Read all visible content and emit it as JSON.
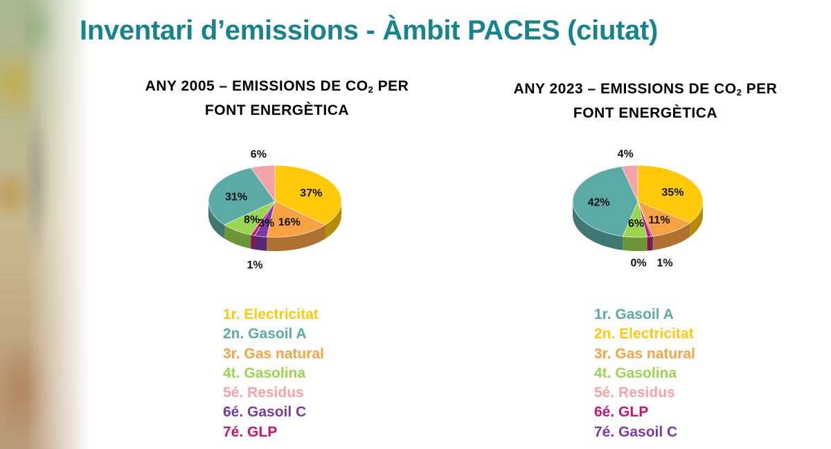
{
  "title": "Inventari d’emissions - Àmbit PACES (ciutat)",
  "colors": {
    "Electricitat": "#ffc90a",
    "Gas natural": "#f9a243",
    "Gasoil C": "#7b3aa6",
    "GLP": "#c8156e",
    "Gasolina": "#9ad650",
    "Gasoil A": "#5aaba5",
    "Residus": "#f5a3a6"
  },
  "chart_data": [
    {
      "type": "pie",
      "title_prefix": "ANY 2005 – EMISSIONS DE CO",
      "title_sub": "2",
      "title_suffix": " PER",
      "title_line2": "FONT ENERGÈTICA",
      "slices": [
        {
          "name": "Electricitat",
          "value": 37,
          "label": "37%"
        },
        {
          "name": "Gas natural",
          "value": 16,
          "label": "16%"
        },
        {
          "name": "Gasoil C",
          "value": 3,
          "label": "3%"
        },
        {
          "name": "GLP",
          "value": 1,
          "label": "1%"
        },
        {
          "name": "Gasolina",
          "value": 8,
          "label": "8%"
        },
        {
          "name": "Gasoil A",
          "value": 31,
          "label": "31%"
        },
        {
          "name": "Residus",
          "value": 6,
          "label": "6%"
        }
      ],
      "legend": [
        {
          "text": "1r. Electricitat",
          "name": "Electricitat"
        },
        {
          "text": "2n. Gasoil A",
          "name": "Gasoil A"
        },
        {
          "text": "3r. Gas natural",
          "name": "Gas natural"
        },
        {
          "text": "4t. Gasolina",
          "name": "Gasolina"
        },
        {
          "text": "5é. Residus",
          "name": "Residus"
        },
        {
          "text": "6é. Gasoil C",
          "name": "Gasoil C"
        },
        {
          "text": "7é. GLP",
          "name": "GLP"
        }
      ]
    },
    {
      "type": "pie",
      "title_prefix": "ANY 2023 – EMISSIONS DE CO",
      "title_sub": "2",
      "title_suffix": " PER",
      "title_line2": "FONT ENERGÈTICA",
      "slices": [
        {
          "name": "Electricitat",
          "value": 35,
          "label": "35%"
        },
        {
          "name": "Gas natural",
          "value": 11,
          "label": "11%"
        },
        {
          "name": "Gasoil C",
          "value": 0.4,
          "label": "0%"
        },
        {
          "name": "GLP",
          "value": 1,
          "label": "1%"
        },
        {
          "name": "Gasolina",
          "value": 6,
          "label": "6%"
        },
        {
          "name": "Gasoil A",
          "value": 42,
          "label": "42%"
        },
        {
          "name": "Residus",
          "value": 4,
          "label": "4%"
        }
      ],
      "legend": [
        {
          "text": "1r. Gasoil A",
          "name": "Gasoil A"
        },
        {
          "text": "2n. Electricitat",
          "name": "Electricitat"
        },
        {
          "text": "3r. Gas natural",
          "name": "Gas natural"
        },
        {
          "text": "4t. Gasolina",
          "name": "Gasolina"
        },
        {
          "text": "5é. Residus",
          "name": "Residus"
        },
        {
          "text": "6é. GLP",
          "name": "GLP"
        },
        {
          "text": "7é. Gasoil C",
          "name": "Gasoil C"
        }
      ]
    }
  ]
}
